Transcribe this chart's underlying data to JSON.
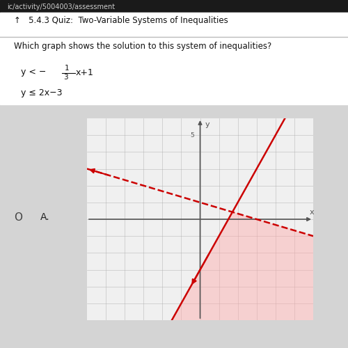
{
  "title_bar": "5.4.3 Quiz: Two-Variable Systems of Inequalities",
  "question": "Which graph shows the solution to this system of inequalities?",
  "ineq1_text": "y < -1/3 x+1",
  "ineq2_text": "y ≤ 2x-3",
  "option_label": "A.",
  "xlim": [
    -6,
    6
  ],
  "ylim": [
    -6,
    6
  ],
  "xticks": [
    -5,
    -4,
    -3,
    -2,
    -1,
    0,
    1,
    2,
    3,
    4,
    5
  ],
  "yticks": [
    -5,
    -4,
    -3,
    -2,
    -1,
    0,
    1,
    2,
    3,
    4,
    5
  ],
  "line1_slope": -0.3333333,
  "line1_intercept": 1,
  "line1_color": "#cc0000",
  "line2_slope": 2,
  "line2_intercept": -3,
  "line2_color": "#cc0000",
  "shade_color": "#ffaaaa",
  "shade_alpha": 0.45,
  "page_bg": "#d4d4d4",
  "axis_color": "#555555",
  "grid_color": "#aaaaaa",
  "url_text": "ic/activity/5004003/assessment",
  "tick5_label": "5"
}
